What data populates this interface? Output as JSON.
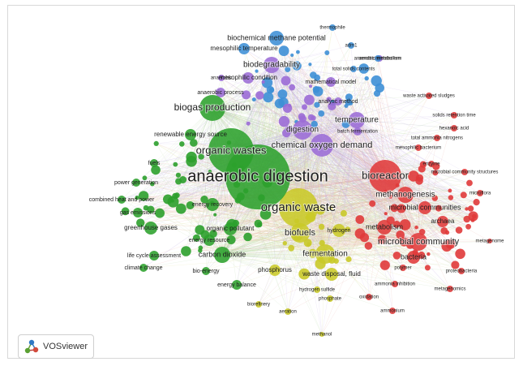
{
  "brand": {
    "name": "VOSviewer"
  },
  "colors": {
    "green": "#2ca02c",
    "red": "#e03a3a",
    "blue": "#3d8fd6",
    "purple": "#9b6cd6",
    "yellow": "#c9c928",
    "link": "#b9c9b0"
  },
  "terms": [
    {
      "label": "anaerobic digestion",
      "cluster": "green"
    },
    {
      "label": "organic wastes",
      "cluster": "green"
    },
    {
      "label": "biogas production",
      "cluster": "green"
    },
    {
      "label": "renewable energy source",
      "cluster": "green"
    },
    {
      "label": "fuels",
      "cluster": "green"
    },
    {
      "label": "power generation",
      "cluster": "green"
    },
    {
      "label": "combined heat and power",
      "cluster": "green"
    },
    {
      "label": "gas emissions",
      "cluster": "green"
    },
    {
      "label": "greenhouse gases",
      "cluster": "green"
    },
    {
      "label": "energy recovery",
      "cluster": "green"
    },
    {
      "label": "organic pollutant",
      "cluster": "green"
    },
    {
      "label": "energy resource",
      "cluster": "green"
    },
    {
      "label": "carbon dioxide",
      "cluster": "green"
    },
    {
      "label": "life cycle assessment",
      "cluster": "green"
    },
    {
      "label": "climate change",
      "cluster": "green"
    },
    {
      "label": "bio-energy",
      "cluster": "green"
    },
    {
      "label": "energy balance",
      "cluster": "green"
    },
    {
      "label": "organic waste",
      "cluster": "yellow"
    },
    {
      "label": "biofuels",
      "cluster": "yellow"
    },
    {
      "label": "hydrogen",
      "cluster": "yellow"
    },
    {
      "label": "fermentation",
      "cluster": "yellow"
    },
    {
      "label": "phosphorus",
      "cluster": "yellow"
    },
    {
      "label": "waste disposal, fluid",
      "cluster": "yellow"
    },
    {
      "label": "hydrogen sulfide",
      "cluster": "yellow"
    },
    {
      "label": "phosphate",
      "cluster": "yellow"
    },
    {
      "label": "biorefinery",
      "cluster": "yellow"
    },
    {
      "label": "aeration",
      "cluster": "yellow"
    },
    {
      "label": "methanol",
      "cluster": "yellow"
    },
    {
      "label": "bioreactor",
      "cluster": "red"
    },
    {
      "label": "methanogenesis",
      "cluster": "red"
    },
    {
      "label": "microbial communities",
      "cluster": "red"
    },
    {
      "label": "archaea",
      "cluster": "red"
    },
    {
      "label": "metabolism",
      "cluster": "red"
    },
    {
      "label": "microbial community",
      "cluster": "red"
    },
    {
      "label": "bacteria",
      "cluster": "red"
    },
    {
      "label": "microflora",
      "cluster": "red"
    },
    {
      "label": "metagenome",
      "cluster": "red"
    },
    {
      "label": "polymer",
      "cluster": "red"
    },
    {
      "label": "proteobacteria",
      "cluster": "red"
    },
    {
      "label": "ammonia inhibition",
      "cluster": "red"
    },
    {
      "label": "metagenomics",
      "cluster": "red"
    },
    {
      "label": "oxidation",
      "cluster": "red"
    },
    {
      "label": "ammonium",
      "cluster": "red"
    },
    {
      "label": "enzyme",
      "cluster": "red"
    },
    {
      "label": "microbial community structures",
      "cluster": "red"
    },
    {
      "label": "mesophilic bacterium",
      "cluster": "red"
    },
    {
      "label": "total ammonia nitrogens",
      "cluster": "red"
    },
    {
      "label": "hexanoic acid",
      "cluster": "red"
    },
    {
      "label": "solids retention time",
      "cluster": "red"
    },
    {
      "label": "waste activated sludges",
      "cluster": "red"
    },
    {
      "label": "chemical oxygen demand",
      "cluster": "purple"
    },
    {
      "label": "digestion",
      "cluster": "purple"
    },
    {
      "label": "temperature",
      "cluster": "purple"
    },
    {
      "label": "batch fermentation",
      "cluster": "purple"
    },
    {
      "label": "analytic method",
      "cluster": "purple"
    },
    {
      "label": "mathematical model",
      "cluster": "purple"
    },
    {
      "label": "biodegradability",
      "cluster": "purple"
    },
    {
      "label": "mesophilic condition",
      "cluster": "purple"
    },
    {
      "label": "anaerobic",
      "cluster": "purple"
    },
    {
      "label": "anaerobic process",
      "cluster": "purple"
    },
    {
      "label": "aerobic metabolism",
      "cluster": "purple"
    },
    {
      "label": "biochemical methane potential",
      "cluster": "blue"
    },
    {
      "label": "mesophilic temperature",
      "cluster": "blue"
    },
    {
      "label": "thermophile",
      "cluster": "blue"
    },
    {
      "label": "adm1",
      "cluster": "blue"
    },
    {
      "label": "anaerobic metabolism",
      "cluster": "blue"
    },
    {
      "label": "total solids contents",
      "cluster": "blue"
    }
  ]
}
